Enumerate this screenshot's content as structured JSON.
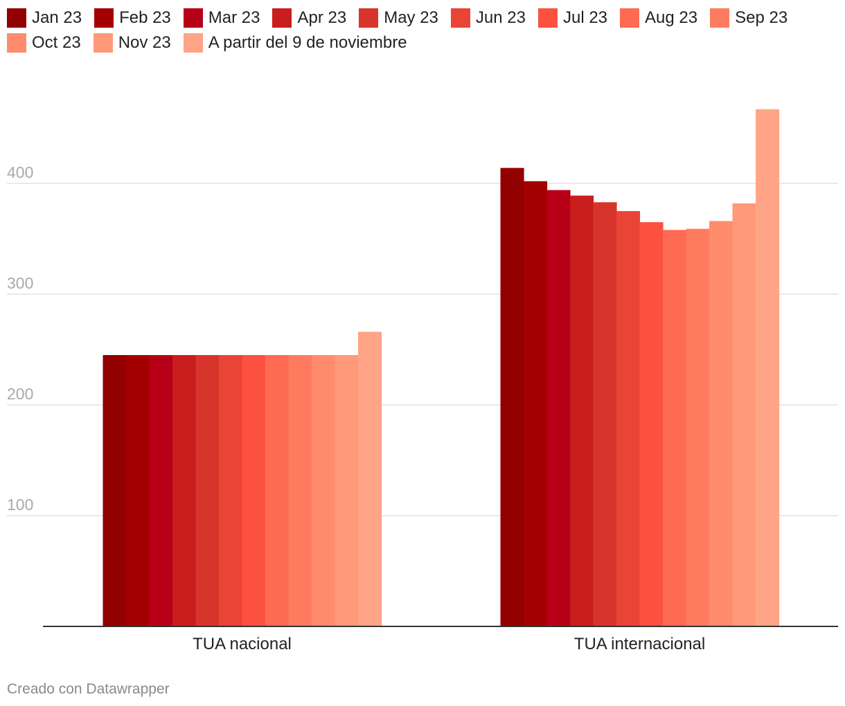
{
  "chart_data": {
    "type": "bar",
    "categories": [
      "TUA nacional",
      "TUA internacional"
    ],
    "series": [
      {
        "name": "Jan 23",
        "color": "#920000",
        "values": [
          245,
          414
        ]
      },
      {
        "name": "Feb 23",
        "color": "#a40002",
        "values": [
          245,
          402
        ]
      },
      {
        "name": "Mar 23",
        "color": "#b70017",
        "values": [
          245,
          394
        ]
      },
      {
        "name": "Apr 23",
        "color": "#c81e1e",
        "values": [
          245,
          389
        ]
      },
      {
        "name": "May 23",
        "color": "#d7352b",
        "values": [
          245,
          383
        ]
      },
      {
        "name": "Jun 23",
        "color": "#e94436",
        "values": [
          245,
          375
        ]
      },
      {
        "name": "Jul 23",
        "color": "#fd5140",
        "values": [
          245,
          365
        ]
      },
      {
        "name": "Aug 23",
        "color": "#ff6a52",
        "values": [
          245,
          358
        ]
      },
      {
        "name": "Sep 23",
        "color": "#ff7b5f",
        "values": [
          245,
          359
        ]
      },
      {
        "name": "Oct 23",
        "color": "#ff8c6c",
        "values": [
          245,
          366
        ]
      },
      {
        "name": "Nov 23",
        "color": "#ff997a",
        "values": [
          245,
          382
        ]
      },
      {
        "name": "A partir del 9 de noviembre",
        "color": "#ffa487",
        "values": [
          266,
          467
        ]
      }
    ],
    "yticks": [
      100,
      200,
      300,
      400
    ],
    "ylim": [
      0,
      480
    ],
    "grid": true,
    "legend": "top-left"
  },
  "footer": "Creado con Datawrapper"
}
